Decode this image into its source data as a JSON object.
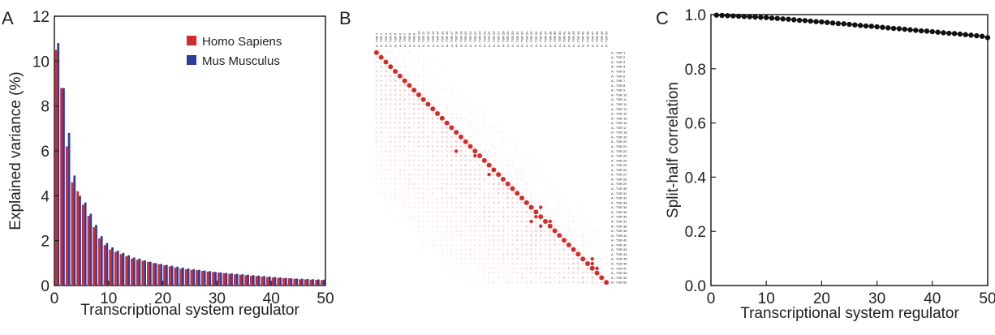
{
  "panels": {
    "A": {
      "letter": "A",
      "type": "bar",
      "xlabel": "Transcriptional system regulator",
      "ylabel": "Explained variance (%)",
      "xlim": [
        0,
        50
      ],
      "ylim": [
        0,
        12
      ],
      "xticks": [
        0,
        10,
        20,
        30,
        40,
        50
      ],
      "yticks": [
        0,
        2,
        4,
        6,
        8,
        10,
        12
      ],
      "legend_position": "top-right",
      "series": [
        {
          "name": "Homo Sapiens",
          "color": "#d62b2b",
          "values": [
            10.5,
            8.8,
            6.2,
            4.6,
            4.2,
            3.6,
            3.1,
            2.6,
            2.1,
            1.8,
            1.6,
            1.5,
            1.4,
            1.3,
            1.2,
            1.15,
            1.1,
            1.05,
            1.0,
            0.95,
            0.9,
            0.85,
            0.8,
            0.75,
            0.72,
            0.7,
            0.68,
            0.65,
            0.62,
            0.6,
            0.58,
            0.55,
            0.52,
            0.5,
            0.48,
            0.46,
            0.44,
            0.42,
            0.4,
            0.38,
            0.36,
            0.34,
            0.33,
            0.32,
            0.3,
            0.28,
            0.27,
            0.26,
            0.25,
            0.24
          ]
        },
        {
          "name": "Mus Musculus",
          "color": "#2b3fa0",
          "values": [
            10.8,
            8.8,
            6.8,
            4.9,
            4.0,
            3.7,
            3.2,
            2.7,
            2.2,
            1.9,
            1.7,
            1.55,
            1.45,
            1.35,
            1.25,
            1.2,
            1.12,
            1.06,
            1.0,
            0.96,
            0.92,
            0.88,
            0.84,
            0.8,
            0.76,
            0.73,
            0.7,
            0.67,
            0.64,
            0.61,
            0.58,
            0.56,
            0.54,
            0.52,
            0.5,
            0.48,
            0.46,
            0.44,
            0.42,
            0.4,
            0.38,
            0.36,
            0.34,
            0.32,
            0.31,
            0.3,
            0.29,
            0.28,
            0.27,
            0.26
          ]
        }
      ]
    },
    "B": {
      "letter": "B",
      "type": "heatmap",
      "row_label_prefix": "A - TSR ",
      "size": 50,
      "color": "#d62b2b"
    },
    "C": {
      "letter": "C",
      "type": "line",
      "xlabel": "Transcriptional system regulator",
      "ylabel": "Split-half correlation",
      "xlim": [
        0,
        50
      ],
      "ylim": [
        0,
        1
      ],
      "xticks": [
        0,
        10,
        20,
        30,
        40,
        50
      ],
      "yticks": [
        0.0,
        0.2,
        0.4,
        0.6,
        0.8,
        1.0
      ],
      "ytick_labels": [
        "0.0",
        "0.2",
        "0.4",
        "0.6",
        "0.8",
        "1.0"
      ],
      "marker_color": "#111111",
      "x": [
        1,
        2,
        3,
        4,
        5,
        6,
        7,
        8,
        9,
        10,
        11,
        12,
        13,
        14,
        15,
        16,
        17,
        18,
        19,
        20,
        21,
        22,
        23,
        24,
        25,
        26,
        27,
        28,
        29,
        30,
        31,
        32,
        33,
        34,
        35,
        36,
        37,
        38,
        39,
        40,
        41,
        42,
        43,
        44,
        45,
        46,
        47,
        48,
        49,
        50
      ],
      "y": [
        0.998,
        0.997,
        0.996,
        0.995,
        0.994,
        0.993,
        0.992,
        0.991,
        0.99,
        0.989,
        0.987,
        0.986,
        0.984,
        0.983,
        0.981,
        0.979,
        0.978,
        0.976,
        0.974,
        0.973,
        0.971,
        0.969,
        0.967,
        0.966,
        0.964,
        0.962,
        0.96,
        0.958,
        0.957,
        0.955,
        0.953,
        0.951,
        0.949,
        0.948,
        0.946,
        0.944,
        0.942,
        0.94,
        0.939,
        0.937,
        0.935,
        0.933,
        0.931,
        0.93,
        0.928,
        0.926,
        0.924,
        0.922,
        0.92,
        0.915
      ]
    }
  }
}
